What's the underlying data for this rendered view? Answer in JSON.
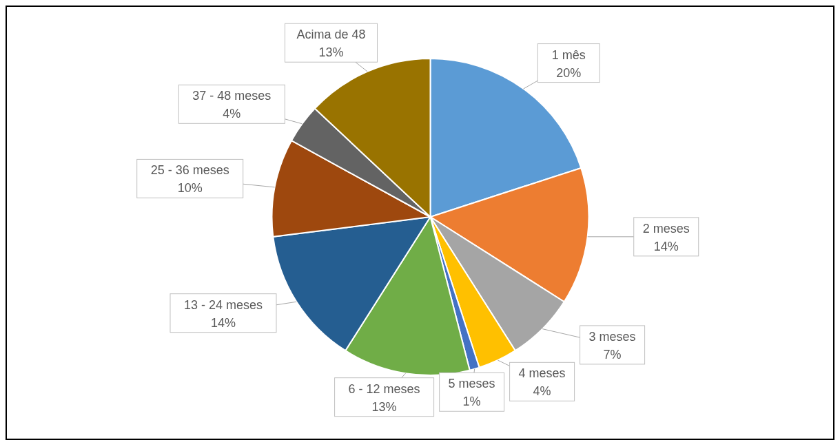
{
  "chart_data": {
    "type": "pie",
    "categories": [
      "1 mês",
      "2 meses",
      "3 meses",
      "4 meses",
      "5 meses",
      "6 - 12 meses",
      "13 - 24 meses",
      "25 - 36 meses",
      "37 - 48 meses",
      "Acima de 48"
    ],
    "values": [
      20,
      14,
      7,
      4,
      1,
      13,
      14,
      10,
      4,
      13
    ],
    "value_labels": [
      "20%",
      "14%",
      "7%",
      "4%",
      "1%",
      "13%",
      "14%",
      "10%",
      "4%",
      "13%"
    ],
    "colors": [
      "#5b9bd5",
      "#ed7d31",
      "#a5a5a5",
      "#ffc000",
      "#4472c4",
      "#70ad47",
      "#255e91",
      "#9e480e",
      "#636363",
      "#997300"
    ],
    "legend": false
  }
}
